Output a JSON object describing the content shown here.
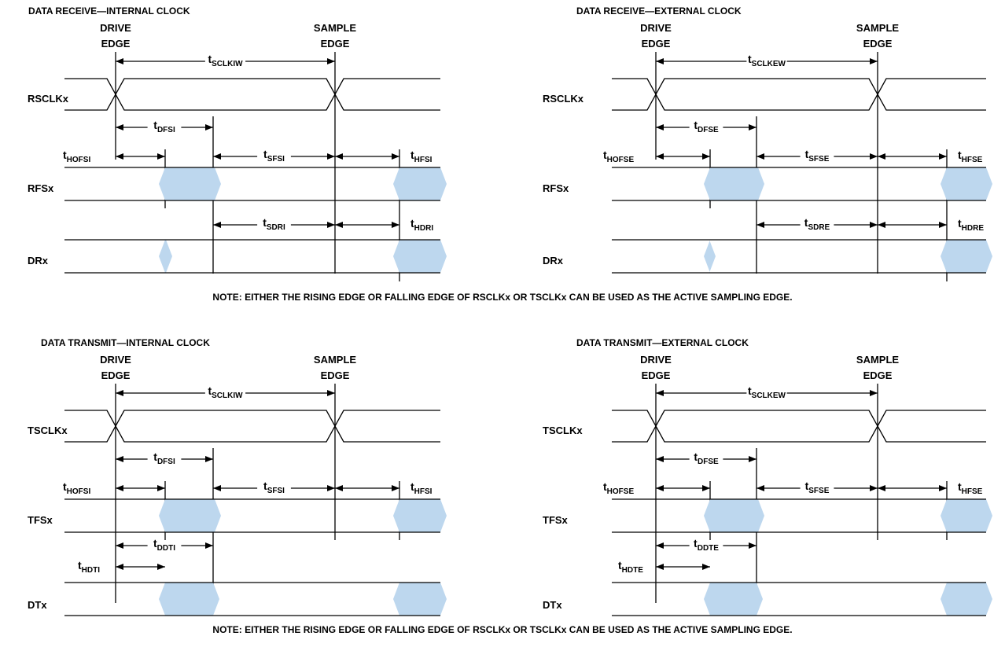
{
  "diagrams": [
    {
      "title": "DATA RECEIVE—INTERNAL CLOCK",
      "drive_edge": [
        "DRIVE",
        "EDGE"
      ],
      "sample_edge": [
        "SAMPLE",
        "EDGE"
      ],
      "clock_label": "RSCLKx",
      "frame_label": "RFSx",
      "data_label": "DRx",
      "t_clk": {
        "t": "t",
        "sub": "SCLKIW"
      },
      "t_dfs": {
        "t": "t",
        "sub": "DFSI"
      },
      "t_hofs": {
        "t": "t",
        "sub": "HOFSI"
      },
      "t_sfs": {
        "t": "t",
        "sub": "SFSI"
      },
      "t_hfs": {
        "t": "t",
        "sub": "HFSI"
      },
      "t_d1": {
        "t": "t",
        "sub": "SDRI"
      },
      "t_d2": {
        "t": "t",
        "sub": "HDRI"
      }
    },
    {
      "title": "DATA RECEIVE—EXTERNAL CLOCK",
      "drive_edge": [
        "DRIVE",
        "EDGE"
      ],
      "sample_edge": [
        "SAMPLE",
        "EDGE"
      ],
      "clock_label": "RSCLKx",
      "frame_label": "RFSx",
      "data_label": "DRx",
      "t_clk": {
        "t": "t",
        "sub": "SCLKEW"
      },
      "t_dfs": {
        "t": "t",
        "sub": "DFSE"
      },
      "t_hofs": {
        "t": "t",
        "sub": "HOFSE"
      },
      "t_sfs": {
        "t": "t",
        "sub": "SFSE"
      },
      "t_hfs": {
        "t": "t",
        "sub": "HFSE"
      },
      "t_d1": {
        "t": "t",
        "sub": "SDRE"
      },
      "t_d2": {
        "t": "t",
        "sub": "HDRE"
      }
    },
    {
      "title": "DATA TRANSMIT—INTERNAL CLOCK",
      "drive_edge": [
        "DRIVE",
        "EDGE"
      ],
      "sample_edge": [
        "SAMPLE",
        "EDGE"
      ],
      "clock_label": "TSCLKx",
      "frame_label": "TFSx",
      "data_label": "DTx",
      "t_clk": {
        "t": "t",
        "sub": "SCLKIW"
      },
      "t_dfs": {
        "t": "t",
        "sub": "DFSI"
      },
      "t_hofs": {
        "t": "t",
        "sub": "HOFSI"
      },
      "t_sfs": {
        "t": "t",
        "sub": "SFSI"
      },
      "t_hfs": {
        "t": "t",
        "sub": "HFSI"
      },
      "t_d1": {
        "t": "t",
        "sub": "DDTI"
      },
      "t_d2": {
        "t": "t",
        "sub": "HDTI"
      }
    },
    {
      "title": "DATA TRANSMIT—EXTERNAL CLOCK",
      "drive_edge": [
        "DRIVE",
        "EDGE"
      ],
      "sample_edge": [
        "SAMPLE",
        "EDGE"
      ],
      "clock_label": "TSCLKx",
      "frame_label": "TFSx",
      "data_label": "DTx",
      "t_clk": {
        "t": "t",
        "sub": "SCLKEW"
      },
      "t_dfs": {
        "t": "t",
        "sub": "DFSE"
      },
      "t_hofs": {
        "t": "t",
        "sub": "HOFSE"
      },
      "t_sfs": {
        "t": "t",
        "sub": "SFSE"
      },
      "t_hfs": {
        "t": "t",
        "sub": "HFSE"
      },
      "t_d1": {
        "t": "t",
        "sub": "DDTE"
      },
      "t_d2": {
        "t": "t",
        "sub": "HDTE"
      }
    }
  ],
  "notes": [
    "NOTE: EITHER THE RISING EDGE OR FALLING EDGE OF RSCLKx OR TSCLKx CAN BE USED AS THE ACTIVE SAMPLING EDGE.",
    "NOTE: EITHER THE RISING EDGE OR FALLING EDGE OF RSCLKx OR TSCLKx CAN BE USED AS THE ACTIVE SAMPLING EDGE."
  ],
  "colors": {
    "valid_data_fill": "#bdd7ee",
    "line": "#000000"
  }
}
